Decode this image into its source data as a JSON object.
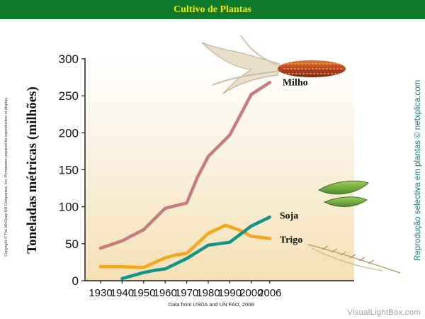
{
  "header": {
    "title": "Cultivo de Plantas"
  },
  "side_text": {
    "copyright": "Copyright © The McGraw-Hill Companies, Inc. Permission required for reproduction or display.",
    "reproduction": "Reprodução selectiva em plantas © netxplica.com"
  },
  "watermark": "VisualLightBox.com",
  "chart_data": {
    "type": "line",
    "title": "",
    "xlabel": "",
    "ylabel": "Toneladas métricas (milhões)",
    "note": "Data from USDA and UN FAO, 2008",
    "categories": [
      "1930",
      "1940",
      "1950",
      "1960",
      "1970",
      "1980",
      "1990",
      "2000",
      "2006"
    ],
    "ylim": [
      0,
      300
    ],
    "yticks": [
      "0",
      "50",
      "100",
      "150",
      "200",
      "250",
      "300"
    ],
    "series": [
      {
        "name": "Milho",
        "color": "#c77b7f",
        "x": [
          1930,
          1940,
          1950,
          1960,
          1970,
          1975,
          1980,
          1990,
          2000,
          2006
        ],
        "y": [
          44,
          54,
          69,
          98,
          105,
          140,
          168,
          197,
          252,
          268
        ]
      },
      {
        "name": "Trigo",
        "color": "#f5a61c",
        "x": [
          1930,
          1940,
          1950,
          1960,
          1965,
          1970,
          1980,
          1988,
          1995,
          2000,
          2006
        ],
        "y": [
          19,
          19,
          18,
          31,
          35,
          37,
          64,
          75,
          68,
          60,
          57
        ]
      },
      {
        "name": "Soja",
        "color": "#149486",
        "x": [
          1940,
          1950,
          1955,
          1960,
          1970,
          1980,
          1990,
          2000,
          2006
        ],
        "y": [
          3,
          11,
          14,
          16,
          30,
          48,
          52,
          74,
          86
        ]
      }
    ],
    "grid": false,
    "legend": "labels at line ends"
  }
}
